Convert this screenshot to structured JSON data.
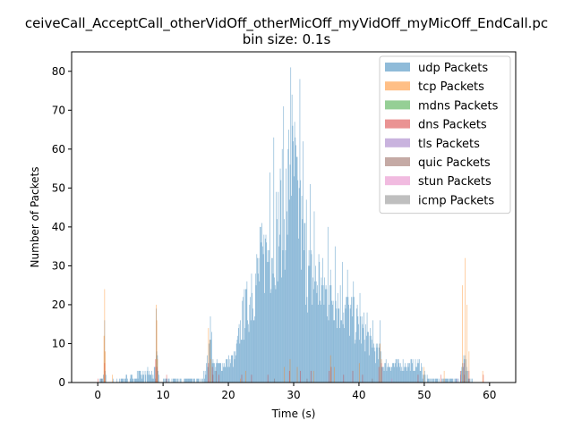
{
  "chart_data": {
    "type": "bar",
    "title": "ceiveCall_AcceptCall_otherVidOff_otherMicOff_myVidOff_myMicOff_EndCall.pc",
    "subtitle": "bin size: 0.1s",
    "xlabel": "Time (s)",
    "ylabel": "Number of Packets",
    "xlim": [
      -4,
      64
    ],
    "ylim": [
      0,
      85
    ],
    "xticks": [
      0,
      10,
      20,
      30,
      40,
      50,
      60
    ],
    "yticks": [
      0,
      10,
      20,
      30,
      40,
      50,
      60,
      70,
      80
    ],
    "bin_size": 0.1,
    "grid": false,
    "legend_position": "top-right",
    "series": [
      {
        "name": "udp Packets",
        "color": "#1f77b4",
        "envelope": [
          [
            0.0,
            0
          ],
          [
            0.9,
            2
          ],
          [
            1.0,
            16
          ],
          [
            1.1,
            3
          ],
          [
            1.3,
            0
          ],
          [
            8.8,
            3
          ],
          [
            8.9,
            19
          ],
          [
            9.0,
            12
          ],
          [
            9.2,
            3
          ],
          [
            9.4,
            0
          ],
          [
            10.2,
            1
          ],
          [
            16.0,
            1
          ],
          [
            16.5,
            4
          ],
          [
            17.0,
            8
          ],
          [
            17.3,
            17
          ],
          [
            17.6,
            5
          ],
          [
            18.0,
            5
          ],
          [
            19.0,
            5
          ],
          [
            20.0,
            6
          ],
          [
            21.0,
            7
          ],
          [
            22.0,
            17
          ],
          [
            23.0,
            22
          ],
          [
            24.0,
            28
          ],
          [
            25.0,
            33
          ],
          [
            26.0,
            37
          ],
          [
            27.0,
            42
          ],
          [
            28.0,
            47
          ],
          [
            29.0,
            52
          ],
          [
            29.5,
            67
          ],
          [
            30.0,
            59
          ],
          [
            30.5,
            52
          ],
          [
            31.0,
            45
          ],
          [
            32.0,
            32
          ],
          [
            33.0,
            28
          ],
          [
            34.0,
            28
          ],
          [
            35.0,
            25
          ],
          [
            36.0,
            25
          ],
          [
            37.0,
            22
          ],
          [
            38.0,
            20
          ],
          [
            39.0,
            18
          ],
          [
            40.0,
            16
          ],
          [
            41.0,
            14
          ],
          [
            42.0,
            10
          ],
          [
            43.0,
            8
          ],
          [
            43.3,
            8
          ],
          [
            43.5,
            5
          ],
          [
            45.0,
            5
          ],
          [
            48.0,
            5
          ],
          [
            49.5,
            5
          ],
          [
            49.8,
            2
          ],
          [
            51.0,
            1
          ],
          [
            55.0,
            1
          ],
          [
            55.5,
            3
          ],
          [
            56.0,
            8
          ],
          [
            56.4,
            5
          ],
          [
            57.0,
            1
          ],
          [
            58.0,
            0
          ]
        ],
        "highlights": [
          [
            29.5,
            81
          ],
          [
            30.9,
            78
          ],
          [
            28.4,
            71
          ],
          [
            29.8,
            66
          ],
          [
            26.9,
            63
          ],
          [
            31.4,
            62
          ],
          [
            29.1,
            60
          ],
          [
            30.5,
            58
          ],
          [
            26.3,
            54
          ],
          [
            32.5,
            51
          ],
          [
            31.9,
            47
          ],
          [
            28.9,
            44
          ],
          [
            33.1,
            44
          ],
          [
            27.4,
            42
          ],
          [
            24.8,
            40
          ],
          [
            35.2,
            40
          ],
          [
            25.6,
            37
          ],
          [
            36.3,
            35
          ],
          [
            33.8,
            33
          ],
          [
            37.4,
            31
          ],
          [
            38.2,
            29
          ],
          [
            23.5,
            28
          ],
          [
            34.7,
            27
          ],
          [
            39.1,
            26
          ],
          [
            22.4,
            24
          ],
          [
            40.1,
            23
          ],
          [
            17.2,
            17
          ],
          [
            41.2,
            18
          ],
          [
            42.1,
            16
          ],
          [
            43.2,
            16
          ]
        ]
      },
      {
        "name": "tcp Packets",
        "color": "#ff7f0e",
        "spikes": [
          [
            1.0,
            24
          ],
          [
            0.9,
            12
          ],
          [
            1.1,
            8
          ],
          [
            2.2,
            2
          ],
          [
            8.9,
            20
          ],
          [
            9.0,
            16
          ],
          [
            9.1,
            6
          ],
          [
            16.9,
            14
          ],
          [
            17.1,
            11
          ],
          [
            17.3,
            6
          ],
          [
            21.8,
            1
          ],
          [
            22.6,
            3
          ],
          [
            28.5,
            4
          ],
          [
            29.4,
            6
          ],
          [
            30.5,
            4
          ],
          [
            33.0,
            3
          ],
          [
            35.6,
            7
          ],
          [
            36.2,
            4
          ],
          [
            40.0,
            5
          ],
          [
            43.2,
            10
          ],
          [
            43.4,
            6
          ],
          [
            49.9,
            4
          ],
          [
            53.0,
            3
          ],
          [
            55.8,
            25
          ],
          [
            56.2,
            32
          ],
          [
            56.5,
            20
          ],
          [
            56.8,
            8
          ],
          [
            58.9,
            3
          ]
        ]
      },
      {
        "name": "mdns Packets",
        "color": "#2ca02c",
        "spikes": []
      },
      {
        "name": "dns Packets",
        "color": "#d62728",
        "spikes": [
          [
            0.0,
            1
          ],
          [
            1.0,
            5
          ],
          [
            8.8,
            6
          ],
          [
            9.0,
            4
          ],
          [
            10.5,
            2
          ],
          [
            16.9,
            5
          ],
          [
            17.5,
            4
          ],
          [
            18.5,
            2
          ],
          [
            22.0,
            2
          ],
          [
            23.5,
            2
          ],
          [
            26.0,
            2
          ],
          [
            29.3,
            3
          ],
          [
            31.0,
            3
          ],
          [
            32.6,
            3
          ],
          [
            35.4,
            3
          ],
          [
            35.7,
            4
          ],
          [
            37.6,
            2
          ],
          [
            39.0,
            3
          ],
          [
            40.5,
            2
          ],
          [
            43.0,
            4
          ],
          [
            43.4,
            5
          ],
          [
            49.0,
            2
          ],
          [
            52.5,
            2
          ],
          [
            55.5,
            3
          ],
          [
            56.0,
            5
          ],
          [
            56.8,
            3
          ],
          [
            59.0,
            2
          ]
        ]
      },
      {
        "name": "tls Packets",
        "color": "#9467bd",
        "spikes": []
      },
      {
        "name": "quic Packets",
        "color": "#8c564b",
        "spikes": [
          [
            0.5,
            1
          ],
          [
            17.6,
            2
          ],
          [
            18.1,
            3
          ],
          [
            27.0,
            1
          ],
          [
            32.0,
            1
          ],
          [
            42.0,
            1
          ],
          [
            56.1,
            2
          ]
        ]
      },
      {
        "name": "stun Packets",
        "color": "#e377c2",
        "spikes": [
          [
            17.0,
            1
          ],
          [
            45.0,
            1
          ],
          [
            55.0,
            1
          ]
        ]
      },
      {
        "name": "icmp Packets",
        "color": "#7f7f7f",
        "spikes": []
      }
    ]
  }
}
